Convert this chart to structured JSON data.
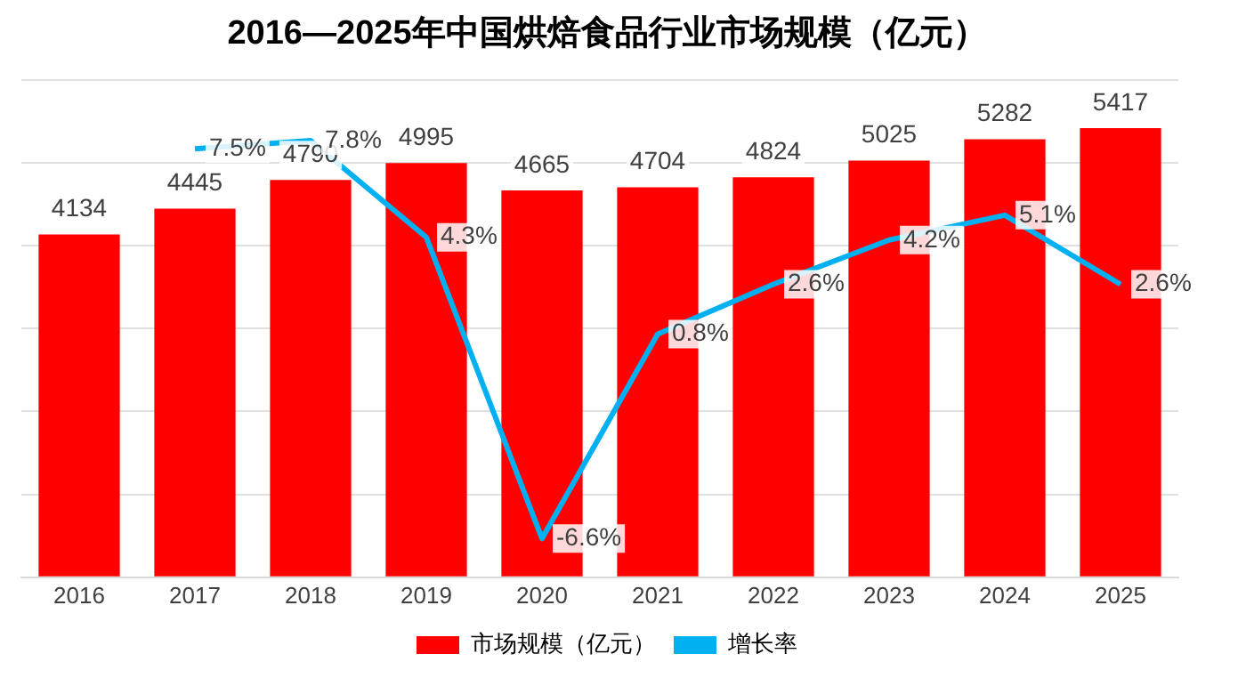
{
  "chart_data": {
    "type": "bar",
    "title": "2016—2025年中国烘焙食品行业市场规模（亿元）",
    "categories": [
      "2016",
      "2017",
      "2018",
      "2019",
      "2020",
      "2021",
      "2022",
      "2023",
      "2024",
      "2025"
    ],
    "series": [
      {
        "name": "市场规模（亿元）",
        "color": "#ff0000",
        "values": [
          4134,
          4445,
          4790,
          4995,
          4665,
          4704,
          4824,
          5025,
          5282,
          5417
        ],
        "value_labels": [
          "4134",
          "4445",
          "4790",
          "4995",
          "4665",
          "4704",
          "4824",
          "5025",
          "5282",
          "5417"
        ]
      },
      {
        "name": "增长率",
        "type": "line",
        "axis": "y2",
        "color": "#00b0f0",
        "values": [
          null,
          7.5,
          7.8,
          4.3,
          -6.6,
          0.8,
          2.6,
          4.2,
          5.1,
          2.6
        ],
        "value_labels": [
          null,
          "7.5%",
          "7.8%",
          "4.3%",
          "-6.6%",
          "0.8%",
          "2.6%",
          "4.2%",
          "5.1%",
          "2.6%"
        ]
      }
    ],
    "ylim": [
      0,
      6000
    ],
    "yticks": [
      0,
      1000,
      2000,
      3000,
      4000,
      5000,
      6000
    ],
    "y2lim": [
      -8,
      10
    ],
    "tick_labels": "x",
    "grid": "y",
    "legend": "bottom",
    "marker": "none"
  }
}
